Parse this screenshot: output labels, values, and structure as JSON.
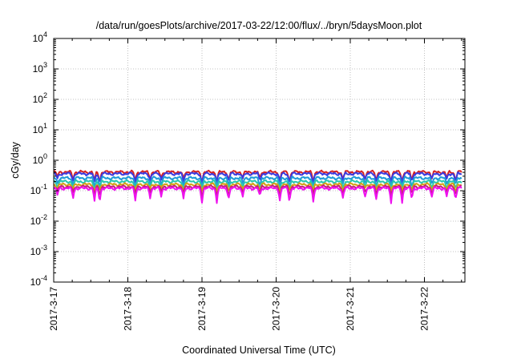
{
  "chart_data": {
    "type": "line",
    "title": "/data/run/goesPlots/archive/2017-03-22/12:00/flux/../bryn/5daysMoon.plot",
    "xlabel": "Coordinated Universal Time (UTC)",
    "ylabel": "cGy/day",
    "yscale": "log",
    "ylim": [
      0.0001,
      10000
    ],
    "xlim": [
      "2017-3-17",
      "2017-3-22 12:00"
    ],
    "grid": true,
    "legend": "none",
    "x_ticks": [
      "2017-3-17",
      "2017-3-18",
      "2017-3-19",
      "2017-3-20",
      "2017-3-21",
      "2017-3-22"
    ],
    "y_ticks": [
      {
        "base": "10",
        "exp": "4"
      },
      {
        "base": "10",
        "exp": "3"
      },
      {
        "base": "10",
        "exp": "2"
      },
      {
        "base": "10",
        "exp": "1"
      },
      {
        "base": "10",
        "exp": "0"
      },
      {
        "base": "10",
        "exp": "-1"
      },
      {
        "base": "10",
        "exp": "-2"
      },
      {
        "base": "10",
        "exp": "-3"
      },
      {
        "base": "10",
        "exp": "-4"
      }
    ],
    "series": [
      {
        "color": "#d62222",
        "baseline": 0.41,
        "dip_depth": 0.55
      },
      {
        "color": "#3a3ae0",
        "baseline": 0.36,
        "dip_depth": 0.5
      },
      {
        "color": "#1f9bd8",
        "baseline": 0.26,
        "dip_depth": 0.5
      },
      {
        "color": "#2ac7b0",
        "baseline": 0.2,
        "dip_depth": 0.5
      },
      {
        "color": "#d4a017",
        "baseline": 0.16,
        "dip_depth": 0.45
      },
      {
        "color": "#c41e7a",
        "baseline": 0.135,
        "dip_depth": 0.5
      },
      {
        "color": "#ee12ee",
        "baseline": 0.12,
        "dip_depth": 0.65
      }
    ],
    "dips_days": [
      0.05,
      0.26,
      0.55,
      0.62,
      1.1,
      1.3,
      1.45,
      1.75,
      2.0,
      2.2,
      2.36,
      2.55,
      2.78,
      3.05,
      3.18,
      3.5,
      3.9,
      4.2,
      4.35,
      4.55,
      4.7,
      4.83,
      5.1,
      5.3,
      5.42
    ]
  }
}
